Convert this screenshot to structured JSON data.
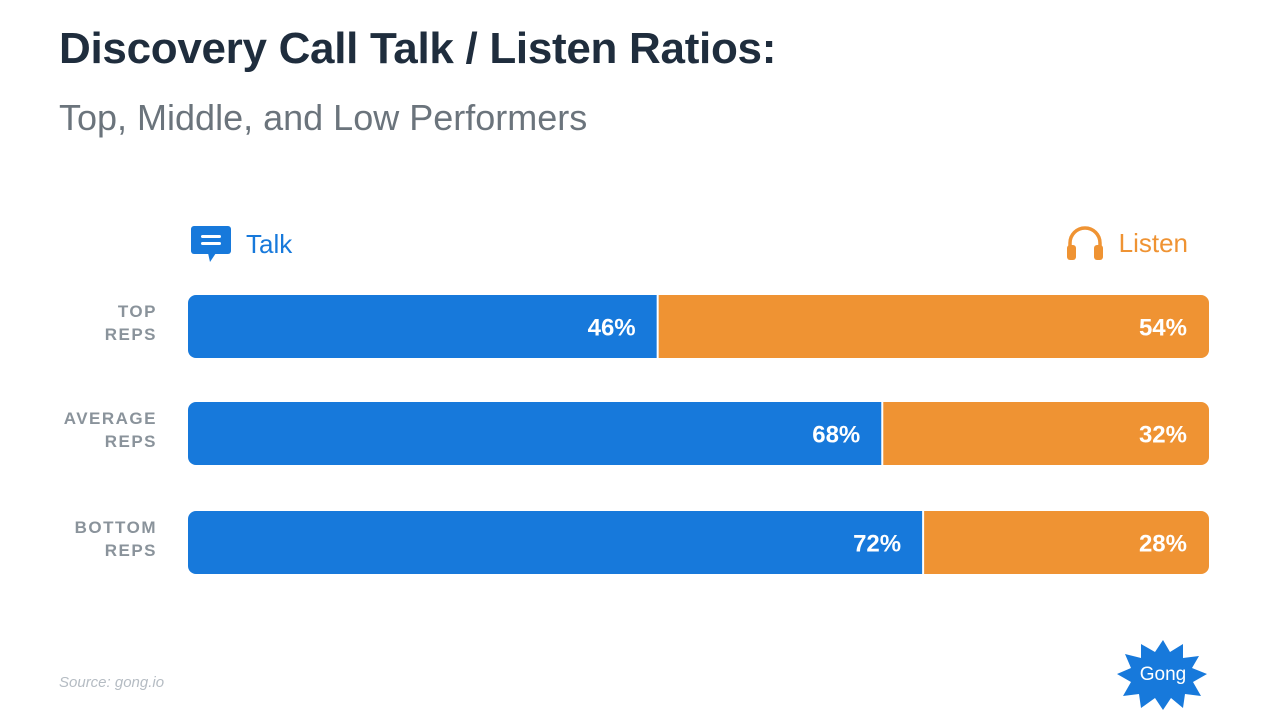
{
  "title": "Discovery Call Talk / Listen Ratios:",
  "subtitle": "Top, Middle, and Low Performers",
  "legend": {
    "talk": "Talk",
    "listen": "Listen",
    "talk_icon": "chat-bubble-icon",
    "listen_icon": "headphones-icon"
  },
  "colors": {
    "talk": "#1779db",
    "listen": "#ef9333",
    "row_label": "#8a939b"
  },
  "chart_data": {
    "type": "bar",
    "stacked": true,
    "orientation": "horizontal",
    "categories": [
      [
        "TOP",
        "REPS"
      ],
      [
        "AVERAGE",
        "REPS"
      ],
      [
        "BOTTOM",
        "REPS"
      ]
    ],
    "series": [
      {
        "name": "Talk",
        "values": [
          46,
          68,
          72
        ],
        "labels": [
          "46%",
          "68%",
          "72%"
        ]
      },
      {
        "name": "Listen",
        "values": [
          54,
          32,
          28
        ],
        "labels": [
          "54%",
          "32%",
          "28%"
        ]
      }
    ],
    "xlim": [
      0,
      100
    ],
    "grid": false,
    "legend_position": "top"
  },
  "source": "Source: gong.io",
  "logo_text": "Gong"
}
